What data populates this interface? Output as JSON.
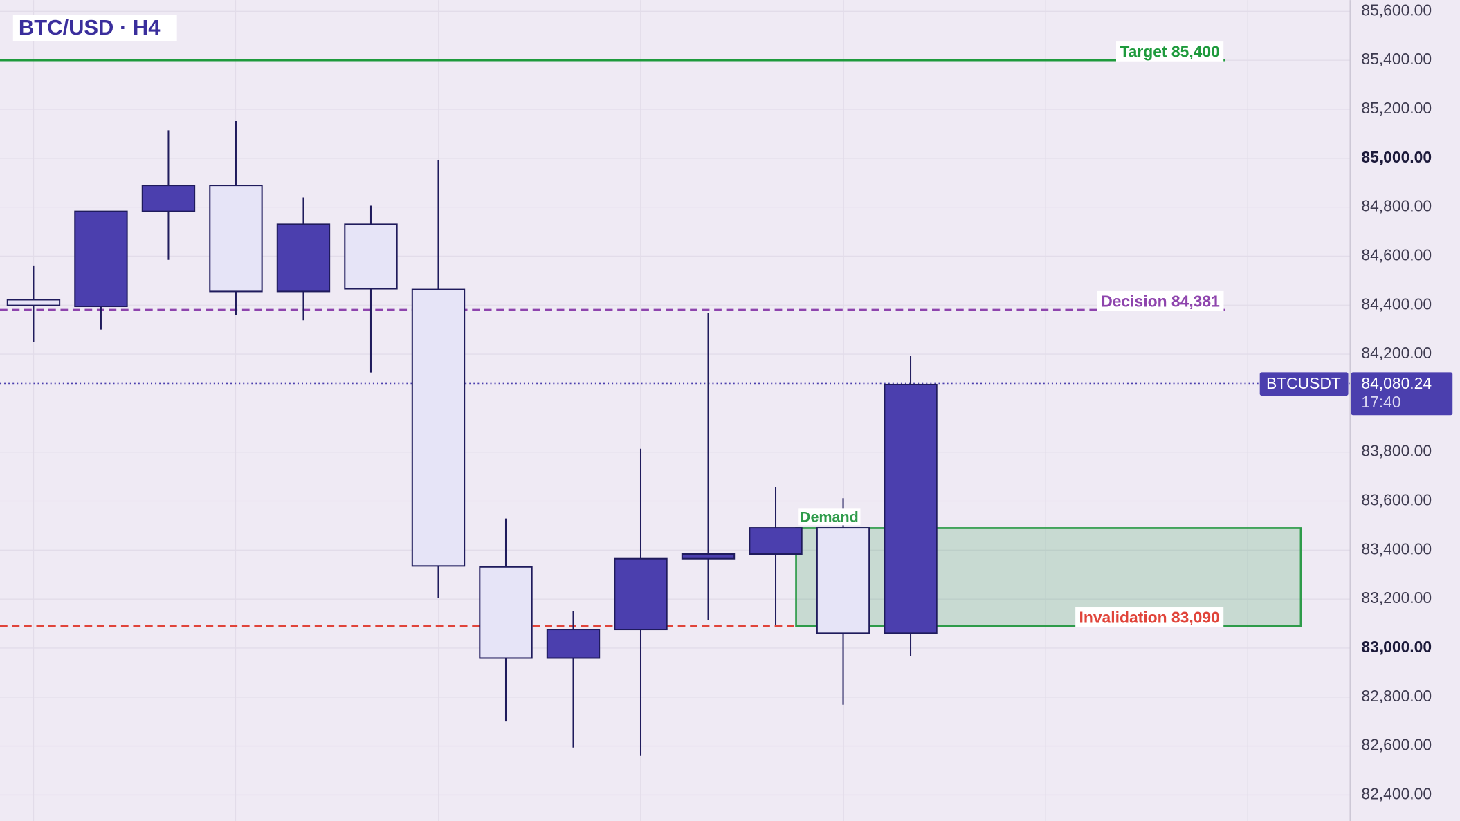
{
  "chart_data": {
    "type": "candlestick",
    "title": "BTC/USD · H4",
    "categories": [
      null,
      null,
      null,
      null,
      null,
      null,
      null,
      null,
      null,
      null,
      null,
      null,
      null,
      null
    ],
    "open": [
      84422,
      84395,
      84783,
      84889,
      84456,
      84730,
      84464,
      83331,
      82959,
      83076,
      83365,
      83384,
      83491,
      83061
    ],
    "high": [
      84562,
      84783,
      85114,
      85152,
      84840,
      84806,
      84992,
      83529,
      83152,
      83814,
      84369,
      83658,
      83612,
      84194
    ],
    "low": [
      84251,
      84300,
      84585,
      84361,
      84338,
      84125,
      83206,
      82700,
      82594,
      82560,
      83114,
      83095,
      82769,
      82966
    ],
    "close": [
      84399,
      84783,
      84889,
      84456,
      84730,
      84467,
      83335,
      82959,
      83076,
      83365,
      83384,
      83491,
      83061,
      84076
    ],
    "up_color": "#4b3fae",
    "down_color": "#e6e4f7",
    "ylim": [
      82294,
      85646
    ],
    "yticks": [
      {
        "value": 82400,
        "label": "82,400.00"
      },
      {
        "value": 82600,
        "label": "82,600.00"
      },
      {
        "value": 82800,
        "label": "82,800.00"
      },
      {
        "value": 83000,
        "label": "83,000.00"
      },
      {
        "value": 83200,
        "label": "83,200.00"
      },
      {
        "value": 83400,
        "label": "83,400.00"
      },
      {
        "value": 83600,
        "label": "83,600.00"
      },
      {
        "value": 83800,
        "label": "83,800.00"
      },
      {
        "value": 84200,
        "label": "84,200.00"
      },
      {
        "value": 84400,
        "label": "84,400.00"
      },
      {
        "value": 84600,
        "label": "84,600.00"
      },
      {
        "value": 84800,
        "label": "84,800.00"
      },
      {
        "value": 85000,
        "label": "85,000.00"
      },
      {
        "value": 85200,
        "label": "85,200.00"
      },
      {
        "value": 85400,
        "label": "85,400.00"
      },
      {
        "value": 85600,
        "label": "85,600.00"
      }
    ],
    "grid": true,
    "levels": [
      {
        "label": "Target 85,400",
        "value": 85400,
        "color": "#1e9a3c",
        "style": "solid"
      },
      {
        "label": "Decision 84,381",
        "value": 84381,
        "color": "#8e44ad",
        "style": "dashed"
      },
      {
        "label": "Invalidation 83,090",
        "value": 83090,
        "color": "#e0443a",
        "style": "dashed"
      }
    ],
    "zone": {
      "label": "Demand",
      "low": 83090,
      "high": 83490,
      "color": "#2e9b4a"
    },
    "last_price": {
      "symbol": "BTCUSDT",
      "value": 84080.24,
      "value_label": "84,080.24",
      "countdown": "17:40",
      "color": "#4b3fae"
    }
  }
}
